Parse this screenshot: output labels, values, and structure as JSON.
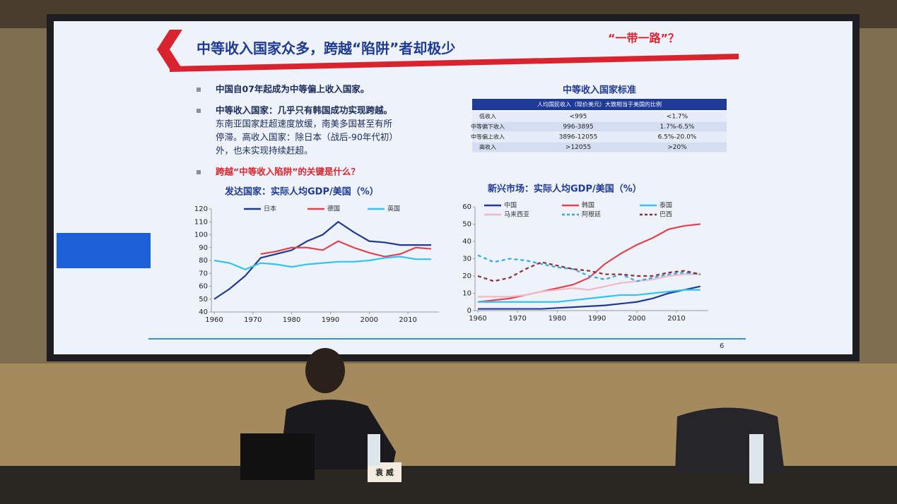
{
  "slide": {
    "title": "中等收入国家众多，跨越“陷阱”者却极少",
    "tag": "“一带一路”？",
    "bullets": [
      [
        "中国自07年起成为中等偏上收入国家。"
      ],
      [
        "中等收入国家：几乎只有韩国成功实现跨越。",
        "东南亚国家赶超速度放缓，南美多国甚至有所",
        "停滞。高收入国家：除日本（战后-90年代初）",
        "外，也未实现持续赶超。"
      ],
      [
        "跨越“中等收入陷阱”的关键是什么？"
      ]
    ],
    "page_number": "6"
  },
  "table": {
    "title": "中等收入国家标准",
    "header": "人均国民收入（现价美元）大致相当于美国的比例",
    "rows": [
      [
        "低收入",
        "<995",
        "<1.7%"
      ],
      [
        "中等偏下收入",
        "996-3895",
        "1.7%-6.5%"
      ],
      [
        "中等偏上收入",
        "3896-12055",
        "6.5%-20.0%"
      ],
      [
        "高收入",
        ">12055",
        ">20%"
      ]
    ]
  },
  "nameplate": "袁 威",
  "chart_data": [
    {
      "type": "line",
      "title": "发达国家：实际人均GDP/美国（%）",
      "x": [
        1960,
        1964,
        1968,
        1972,
        1976,
        1980,
        1984,
        1988,
        1992,
        1996,
        2000,
        2004,
        2008,
        2012,
        2016
      ],
      "xlim": [
        1960,
        2018
      ],
      "xticks": [
        1960,
        1970,
        1980,
        1990,
        2000,
        2010
      ],
      "ylim": [
        40,
        120
      ],
      "yticks": [
        40,
        50,
        60,
        70,
        80,
        90,
        100,
        110,
        120
      ],
      "grid": false,
      "series": [
        {
          "name": "日本",
          "color": "#1f3a93",
          "values": [
            50,
            58,
            68,
            82,
            85,
            88,
            95,
            100,
            110,
            102,
            95,
            94,
            92,
            92,
            92
          ]
        },
        {
          "name": "德国",
          "color": "#e0424f",
          "values": [
            null,
            null,
            null,
            85,
            87,
            90,
            90,
            88,
            95,
            90,
            86,
            83,
            85,
            90,
            89
          ]
        },
        {
          "name": "英国",
          "color": "#33c3f0",
          "values": [
            80,
            78,
            73,
            78,
            77,
            75,
            77,
            78,
            79,
            79,
            80,
            82,
            83,
            81,
            81
          ]
        }
      ]
    },
    {
      "type": "line",
      "title": "新兴市场：实际人均GDP/美国（%）",
      "x": [
        1960,
        1964,
        1968,
        1972,
        1976,
        1980,
        1984,
        1988,
        1992,
        1996,
        2000,
        2004,
        2008,
        2012,
        2016
      ],
      "xlim": [
        1960,
        2018
      ],
      "xticks": [
        1960,
        1970,
        1980,
        1990,
        2000,
        2010
      ],
      "ylim": [
        0,
        60
      ],
      "yticks": [
        0,
        10,
        20,
        30,
        40,
        50,
        60
      ],
      "grid": false,
      "series": [
        {
          "name": "中国",
          "color": "#1f3a93",
          "dashed": false,
          "values": [
            1,
            1,
            1,
            1,
            1,
            1.5,
            2,
            2.5,
            3,
            4,
            5,
            7,
            10,
            12,
            14
          ]
        },
        {
          "name": "韩国",
          "color": "#e0424f",
          "dashed": false,
          "values": [
            5,
            6,
            7,
            9,
            11,
            13,
            15,
            19,
            27,
            33,
            38,
            42,
            47,
            49,
            50
          ]
        },
        {
          "name": "泰国",
          "color": "#33c3f0",
          "dashed": false,
          "values": [
            5,
            5,
            5,
            5,
            5,
            5,
            6,
            7,
            8,
            9,
            9,
            10,
            11,
            12,
            12
          ]
        },
        {
          "name": "马来西亚",
          "color": "#f2b8c6",
          "dashed": false,
          "values": [
            8,
            8,
            8,
            9,
            11,
            12,
            13,
            12,
            14,
            16,
            17,
            18,
            20,
            21,
            21
          ]
        },
        {
          "name": "阿根廷",
          "color": "#33a9e0",
          "dashed": true,
          "values": [
            32,
            28,
            30,
            29,
            27,
            25,
            24,
            20,
            18,
            21,
            17,
            19,
            21,
            22,
            21
          ]
        },
        {
          "name": "巴西",
          "color": "#8b2d3a",
          "dashed": true,
          "values": [
            20,
            17,
            19,
            24,
            28,
            26,
            24,
            23,
            21,
            21,
            20,
            20,
            22,
            23,
            21
          ]
        }
      ]
    }
  ]
}
